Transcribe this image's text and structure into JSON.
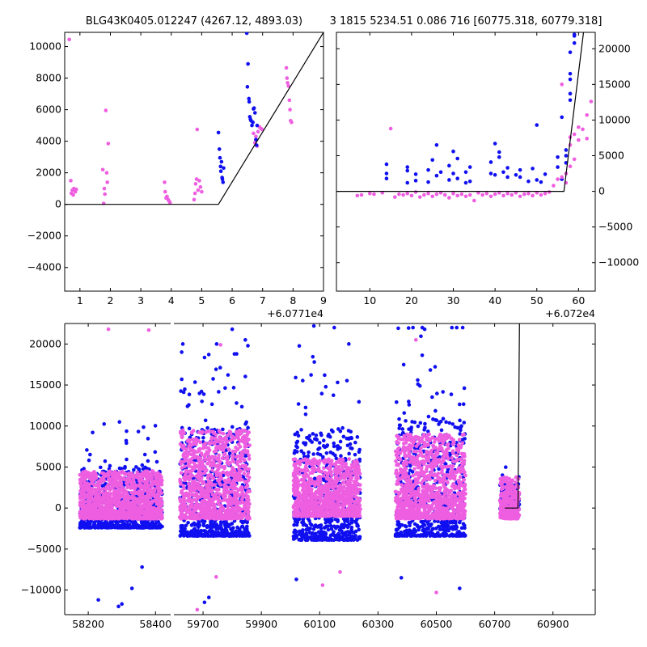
{
  "figure": {
    "title_left": "BLG43K0405.012247 (4267.12, 4893.03)",
    "title_right": "3 1815 5234.51 0.086 716 [60775.318, 60779.318]",
    "colors": {
      "series_a": "#0f0ff0",
      "series_b": "#ee5ee0",
      "model": "#000000"
    }
  },
  "chart_data": [
    {
      "id": "panel-top-left",
      "type": "scatter",
      "title": "BLG43K0405.012247 (4267.12, 4893.03)",
      "xlim": [
        0.5,
        9.0
      ],
      "ylim": [
        -5500,
        10900
      ],
      "x_ticks": [
        1,
        2,
        3,
        4,
        5,
        6,
        7,
        8,
        9
      ],
      "y_ticks": [
        -4000,
        -2000,
        0,
        2000,
        4000,
        6000,
        8000,
        10000
      ],
      "x_offset_label": "+6.0771e4",
      "y_axis_side": "left",
      "series": [
        {
          "color": "#ee5ee0",
          "points": [
            [
              0.65,
              10450
            ],
            [
              0.7,
              1500
            ],
            [
              0.72,
              700
            ],
            [
              0.75,
              900
            ],
            [
              0.78,
              600
            ],
            [
              0.8,
              1000
            ],
            [
              0.85,
              800
            ],
            [
              0.88,
              950
            ],
            [
              1.75,
              2200
            ],
            [
              1.8,
              1000
            ],
            [
              1.82,
              650
            ],
            [
              1.85,
              5950
            ],
            [
              1.88,
              2000
            ],
            [
              1.9,
              1400
            ],
            [
              1.93,
              3850
            ],
            [
              1.78,
              60
            ],
            [
              3.78,
              1400
            ],
            [
              3.8,
              800
            ],
            [
              3.83,
              400
            ],
            [
              3.86,
              500
            ],
            [
              3.9,
              300
            ],
            [
              3.93,
              200
            ],
            [
              3.96,
              100
            ],
            [
              4.75,
              300
            ],
            [
              4.78,
              700
            ],
            [
              4.8,
              1300
            ],
            [
              4.83,
              1600
            ],
            [
              4.85,
              4750
            ],
            [
              4.88,
              900
            ],
            [
              4.92,
              1500
            ],
            [
              4.96,
              1100
            ],
            [
              5.0,
              800
            ],
            [
              6.7,
              4500
            ],
            [
              6.75,
              3900
            ],
            [
              6.78,
              4300
            ],
            [
              6.82,
              3700
            ],
            [
              6.85,
              4600
            ],
            [
              6.9,
              4900
            ],
            [
              6.95,
              4800
            ],
            [
              6.98,
              4750
            ],
            [
              7.78,
              8650
            ],
            [
              7.8,
              8000
            ],
            [
              7.82,
              7700
            ],
            [
              7.85,
              7500
            ],
            [
              7.88,
              6600
            ],
            [
              7.9,
              6000
            ],
            [
              7.92,
              5300
            ],
            [
              7.95,
              5200
            ]
          ]
        },
        {
          "color": "#0f0ff0",
          "points": [
            [
              5.55,
              4550
            ],
            [
              5.58,
              3500
            ],
            [
              5.6,
              2950
            ],
            [
              5.62,
              2400
            ],
            [
              5.63,
              2100
            ],
            [
              5.65,
              2700
            ],
            [
              5.67,
              1700
            ],
            [
              5.68,
              1600
            ],
            [
              5.7,
              1400
            ],
            [
              5.72,
              2300
            ],
            [
              6.48,
              10850
            ],
            [
              6.5,
              7450
            ],
            [
              6.52,
              8900
            ],
            [
              6.55,
              6700
            ],
            [
              6.56,
              6500
            ],
            [
              6.58,
              5550
            ],
            [
              6.6,
              5400
            ],
            [
              6.62,
              5300
            ],
            [
              6.65,
              5000
            ],
            [
              6.68,
              5200
            ],
            [
              6.7,
              6050
            ],
            [
              6.72,
              6100
            ],
            [
              6.75,
              5800
            ],
            [
              6.78,
              4100
            ],
            [
              6.8,
              3750
            ],
            [
              6.82,
              5000
            ]
          ]
        }
      ],
      "model_line": [
        [
          0.5,
          0
        ],
        [
          5.55,
          0
        ],
        [
          9.0,
          10900
        ]
      ]
    },
    {
      "id": "panel-top-right",
      "type": "scatter",
      "title": "3 1815 5234.51 0.086 716 [60775.318, 60779.318]",
      "xlim": [
        2,
        64
      ],
      "ylim": [
        -14000,
        22300
      ],
      "x_ticks": [
        10,
        20,
        30,
        40,
        50,
        60
      ],
      "y_ticks": [
        -10000,
        -5000,
        0,
        5000,
        10000,
        15000,
        20000
      ],
      "x_offset_label": "+6.072e4",
      "y_axis_side": "right",
      "series": [
        {
          "color": "#0f0ff0",
          "points": [
            [
              14,
              1800
            ],
            [
              14,
              2500
            ],
            [
              14,
              3800
            ],
            [
              19,
              1200
            ],
            [
              19,
              2900
            ],
            [
              19,
              3400
            ],
            [
              21,
              1500
            ],
            [
              21,
              2400
            ],
            [
              24,
              3000
            ],
            [
              24,
              1300
            ],
            [
              25,
              4400
            ],
            [
              26,
              6500
            ],
            [
              26,
              2200
            ],
            [
              27,
              2700
            ],
            [
              29,
              1600
            ],
            [
              29,
              3600
            ],
            [
              30,
              2500
            ],
            [
              30,
              5600
            ],
            [
              31,
              4600
            ],
            [
              31,
              1800
            ],
            [
              33,
              2700
            ],
            [
              33,
              1200
            ],
            [
              34,
              1400
            ],
            [
              34,
              3400
            ],
            [
              39,
              2500
            ],
            [
              39,
              4100
            ],
            [
              40,
              6700
            ],
            [
              40,
              2300
            ],
            [
              41,
              5500
            ],
            [
              41,
              4800
            ],
            [
              42,
              2700
            ],
            [
              43,
              2000
            ],
            [
              43,
              3300
            ],
            [
              45,
              2300
            ],
            [
              46,
              2000
            ],
            [
              46,
              3000
            ],
            [
              48,
              1400
            ],
            [
              49,
              3200
            ],
            [
              50,
              1600
            ],
            [
              50,
              9300
            ],
            [
              51,
              1300
            ],
            [
              52,
              2400
            ],
            [
              55,
              3400
            ],
            [
              55,
              4800
            ],
            [
              56,
              1700
            ],
            [
              56,
              10400
            ],
            [
              57,
              5800
            ],
            [
              57,
              4000
            ],
            [
              57,
              5000
            ],
            [
              58,
              12800
            ],
            [
              58,
              13700
            ],
            [
              58,
              15700
            ],
            [
              58,
              16500
            ],
            [
              58,
              19500
            ],
            [
              59,
              20800
            ],
            [
              59,
              21800
            ],
            [
              59,
              22000
            ]
          ]
        },
        {
          "color": "#ee5ee0",
          "points": [
            [
              7,
              -600
            ],
            [
              8,
              -500
            ],
            [
              10,
              -300
            ],
            [
              11,
              -400
            ],
            [
              13,
              -200
            ],
            [
              15,
              8800
            ],
            [
              16,
              -800
            ],
            [
              17,
              -400
            ],
            [
              18,
              -500
            ],
            [
              19,
              -300
            ],
            [
              20,
              -600
            ],
            [
              21,
              -100
            ],
            [
              22,
              -800
            ],
            [
              23,
              -500
            ],
            [
              24,
              -300
            ],
            [
              25,
              -700
            ],
            [
              26,
              -400
            ],
            [
              27,
              -200
            ],
            [
              28,
              -500
            ],
            [
              29,
              -900
            ],
            [
              30,
              -300
            ],
            [
              31,
              -600
            ],
            [
              32,
              -400
            ],
            [
              33,
              -700
            ],
            [
              34,
              -500
            ],
            [
              35,
              -1300
            ],
            [
              36,
              -200
            ],
            [
              37,
              -500
            ],
            [
              38,
              -300
            ],
            [
              39,
              -700
            ],
            [
              40,
              -400
            ],
            [
              41,
              -200
            ],
            [
              42,
              -600
            ],
            [
              43,
              -300
            ],
            [
              44,
              -500
            ],
            [
              45,
              -200
            ],
            [
              46,
              -700
            ],
            [
              47,
              -400
            ],
            [
              48,
              -300
            ],
            [
              49,
              -600
            ],
            [
              50,
              -200
            ],
            [
              51,
              -500
            ],
            [
              52,
              -300
            ],
            [
              53,
              -100
            ],
            [
              54,
              800
            ],
            [
              55,
              1700
            ],
            [
              56,
              15000
            ],
            [
              57,
              1200
            ],
            [
              58,
              6500
            ],
            [
              58,
              7600
            ],
            [
              59,
              8000
            ],
            [
              60,
              7200
            ],
            [
              60,
              9000
            ],
            [
              61,
              8700
            ],
            [
              62,
              7400
            ],
            [
              62,
              10700
            ],
            [
              63,
              12600
            ],
            [
              58,
              3500
            ],
            [
              59,
              4500
            ],
            [
              57,
              2500
            ],
            [
              56,
              2000
            ]
          ]
        }
      ],
      "model_line": [
        [
          2,
          0
        ],
        [
          56.5,
          0
        ],
        [
          61.2,
          22300
        ]
      ]
    },
    {
      "id": "panel-bottom",
      "type": "scatter",
      "title": "",
      "segments": [
        {
          "xlim": [
            58130,
            58445
          ],
          "x_ticks": [
            58200,
            58400
          ]
        },
        {
          "xlim": [
            59600,
            61045
          ],
          "x_ticks": [
            59700,
            59900,
            60100,
            60300,
            60500,
            60700,
            60900
          ]
        }
      ],
      "ylim": [
        -13000,
        22500
      ],
      "y_ticks": [
        -10000,
        -5000,
        0,
        5000,
        10000,
        15000,
        20000
      ],
      "y_axis_side": "left",
      "dense_blocks": [
        {
          "x0": 58175,
          "x1": 58420,
          "blue_range": [
            -3000,
            10500
          ],
          "pink_range": [
            -1300,
            4500
          ]
        },
        {
          "x0": 59620,
          "x1": 59860,
          "blue_range": [
            -4000,
            20000
          ],
          "pink_range": [
            -1300,
            9500
          ]
        },
        {
          "x0": 60010,
          "x1": 60240,
          "blue_range": [
            -4500,
            20000
          ],
          "pink_range": [
            -1000,
            6000
          ]
        },
        {
          "x0": 60360,
          "x1": 60600,
          "blue_range": [
            -4000,
            22000
          ],
          "pink_range": [
            -1300,
            9000
          ]
        },
        {
          "x0": 60718,
          "x1": 60785,
          "blue_range": [
            -800,
            5500
          ],
          "pink_range": [
            -1300,
            3800
          ]
        }
      ],
      "outliers": [
        [
          58230,
          -11200
        ],
        [
          58260,
          21800
        ],
        [
          58300,
          -11700
        ],
        [
          58330,
          -9800
        ],
        [
          58380,
          21700
        ],
        [
          58360,
          -7200
        ],
        [
          58290,
          -12000
        ],
        [
          59680,
          -12400
        ],
        [
          59705,
          -11500
        ],
        [
          59720,
          -10900
        ],
        [
          59745,
          -8400
        ],
        [
          59800,
          21800
        ],
        [
          59845,
          20500
        ],
        [
          59760,
          19900
        ],
        [
          60020,
          -8700
        ],
        [
          60080,
          22200
        ],
        [
          60110,
          -9400
        ],
        [
          60150,
          22000
        ],
        [
          60200,
          20000
        ],
        [
          60170,
          -7800
        ],
        [
          60380,
          -8500
        ],
        [
          60460,
          21800
        ],
        [
          60500,
          -10300
        ],
        [
          60580,
          -9800
        ],
        [
          60570,
          22000
        ],
        [
          60430,
          20500
        ]
      ],
      "model_line": [
        [
          60735,
          0
        ],
        [
          60780,
          0
        ],
        [
          60785,
          22500
        ]
      ]
    }
  ]
}
